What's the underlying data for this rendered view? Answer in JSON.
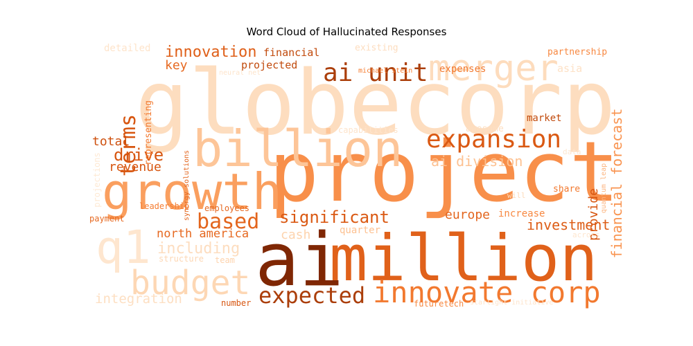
{
  "chart_data": {
    "type": "wordcloud",
    "title": "Word Cloud of Hallucinated Responses",
    "colormap": "Oranges",
    "words": [
      {
        "text": "globecorp",
        "weight": 0.15,
        "orientation": "horizontal"
      },
      {
        "text": "project",
        "weight": 0.52,
        "orientation": "horizontal"
      },
      {
        "text": "ai",
        "weight": 1.0,
        "orientation": "horizontal"
      },
      {
        "text": "million",
        "weight": 0.74,
        "orientation": "horizontal"
      },
      {
        "text": "billion",
        "weight": 0.28,
        "orientation": "horizontal"
      },
      {
        "text": "growth",
        "weight": 0.45,
        "orientation": "horizontal"
      },
      {
        "text": "merger",
        "weight": 0.16,
        "orientation": "horizontal"
      },
      {
        "text": "q1",
        "weight": 0.08,
        "orientation": "horizontal"
      },
      {
        "text": "budget",
        "weight": 0.2,
        "orientation": "horizontal"
      },
      {
        "text": "innovate corp",
        "weight": 0.62,
        "orientation": "horizontal"
      },
      {
        "text": "expected",
        "weight": 0.9,
        "orientation": "horizontal"
      },
      {
        "text": "ai unit",
        "weight": 0.9,
        "orientation": "horizontal"
      },
      {
        "text": "expansion",
        "weight": 0.78,
        "orientation": "horizontal"
      },
      {
        "text": "terms",
        "weight": 0.8,
        "orientation": "vertical"
      },
      {
        "text": "based",
        "weight": 0.72,
        "orientation": "horizontal"
      },
      {
        "text": "significant",
        "weight": 0.78,
        "orientation": "horizontal"
      },
      {
        "text": "drive",
        "weight": 0.8,
        "orientation": "horizontal"
      },
      {
        "text": "innovation",
        "weight": 0.75,
        "orientation": "horizontal"
      },
      {
        "text": "financial forecast",
        "weight": 0.5,
        "orientation": "vertical"
      },
      {
        "text": "investment",
        "weight": 0.76,
        "orientation": "horizontal"
      },
      {
        "text": "provide",
        "weight": 0.8,
        "orientation": "vertical"
      },
      {
        "text": "ai division",
        "weight": 0.3,
        "orientation": "horizontal"
      },
      {
        "text": "including",
        "weight": 0.15,
        "orientation": "horizontal"
      },
      {
        "text": "north america",
        "weight": 0.7,
        "orientation": "horizontal"
      },
      {
        "text": "europe",
        "weight": 0.72,
        "orientation": "horizontal"
      },
      {
        "text": "total",
        "weight": 0.82,
        "orientation": "horizontal"
      },
      {
        "text": "revenue",
        "weight": 0.8,
        "orientation": "horizontal"
      },
      {
        "text": "key",
        "weight": 0.7,
        "orientation": "horizontal"
      },
      {
        "text": "financial",
        "weight": 0.85,
        "orientation": "horizontal"
      },
      {
        "text": "projected",
        "weight": 0.85,
        "orientation": "horizontal"
      },
      {
        "text": "integration",
        "weight": 0.14,
        "orientation": "horizontal"
      },
      {
        "text": "cash",
        "weight": 0.22,
        "orientation": "horizontal"
      },
      {
        "text": "quarter",
        "weight": 0.3,
        "orientation": "horizontal"
      },
      {
        "text": "increase",
        "weight": 0.55,
        "orientation": "horizontal"
      },
      {
        "text": "share",
        "weight": 0.62,
        "orientation": "horizontal"
      },
      {
        "text": "market",
        "weight": 0.85,
        "orientation": "horizontal"
      },
      {
        "text": "expenses",
        "weight": 0.62,
        "orientation": "horizontal"
      },
      {
        "text": "asia",
        "weight": 0.12,
        "orientation": "horizontal"
      },
      {
        "text": "partnership",
        "weight": 0.55,
        "orientation": "horizontal"
      },
      {
        "text": "existing",
        "weight": 0.15,
        "orientation": "horizontal"
      },
      {
        "text": "michael stein",
        "weight": 0.6,
        "orientation": "horizontal"
      },
      {
        "text": "neural net",
        "weight": 0.1,
        "orientation": "horizontal"
      },
      {
        "text": "detailed",
        "weight": 0.1,
        "orientation": "horizontal"
      },
      {
        "text": "projections",
        "weight": 0.06,
        "orientation": "vertical"
      },
      {
        "text": "representing",
        "weight": 0.62,
        "orientation": "vertical"
      },
      {
        "text": "synergy solutions",
        "weight": 0.72,
        "orientation": "vertical"
      },
      {
        "text": "capabilities",
        "weight": 0.1,
        "orientation": "horizontal"
      },
      {
        "text": "awesome",
        "weight": 0.14,
        "orientation": "horizontal"
      },
      {
        "text": "data",
        "weight": 0.08,
        "orientation": "horizontal"
      },
      {
        "text": "quantum leap",
        "weight": 0.35,
        "orientation": "vertical"
      },
      {
        "text": "will",
        "weight": 0.18,
        "orientation": "horizontal"
      },
      {
        "text": "leadership",
        "weight": 0.6,
        "orientation": "horizontal"
      },
      {
        "text": "employees",
        "weight": 0.7,
        "orientation": "horizontal"
      },
      {
        "text": "payment",
        "weight": 0.7,
        "orientation": "horizontal"
      },
      {
        "text": "structure",
        "weight": 0.2,
        "orientation": "horizontal"
      },
      {
        "text": "team",
        "weight": 0.22,
        "orientation": "horizontal"
      },
      {
        "text": "across",
        "weight": 0.08,
        "orientation": "horizontal"
      },
      {
        "text": "number",
        "weight": 0.8,
        "orientation": "horizontal"
      },
      {
        "text": "futuretech",
        "weight": 0.55,
        "orientation": "horizontal"
      },
      {
        "text": "starlight initiative",
        "weight": 0.1,
        "orientation": "horizontal"
      }
    ]
  }
}
